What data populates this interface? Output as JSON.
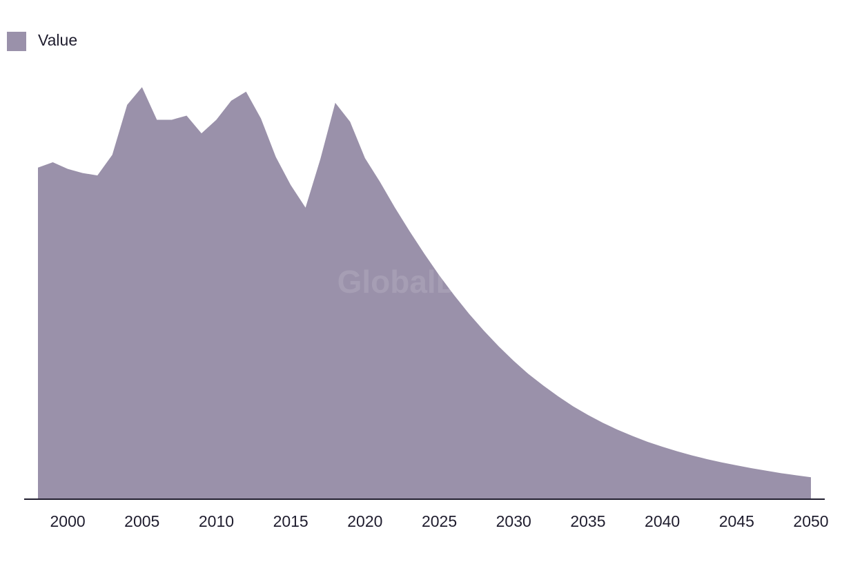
{
  "chart_data": {
    "type": "area",
    "title": "",
    "xlabel": "",
    "ylabel": "",
    "legend": {
      "position": "top-left",
      "entries": [
        "Value"
      ]
    },
    "grid": false,
    "xlim": [
      1998,
      2050
    ],
    "ylim": [
      0,
      100
    ],
    "x_ticks": [
      2000,
      2005,
      2010,
      2015,
      2020,
      2025,
      2030,
      2035,
      2040,
      2045,
      2050
    ],
    "series": [
      {
        "name": "Value",
        "color": "#9a91aa",
        "x": [
          1998,
          1999,
          2000,
          2001,
          2002,
          2003,
          2004,
          2005,
          2006,
          2007,
          2008,
          2009,
          2010,
          2011,
          2012,
          2013,
          2014,
          2015,
          2016,
          2017,
          2018,
          2019,
          2020,
          2021,
          2022,
          2023,
          2024,
          2025,
          2026,
          2027,
          2028,
          2029,
          2030,
          2031,
          2032,
          2033,
          2034,
          2035,
          2036,
          2037,
          2038,
          2039,
          2040,
          2041,
          2042,
          2043,
          2044,
          2045,
          2046,
          2047,
          2048,
          2049,
          2050
        ],
        "values": [
          80.3,
          81.6,
          80.0,
          79.0,
          78.4,
          83.4,
          95.5,
          99.8,
          91.9,
          91.9,
          92.9,
          88.6,
          91.9,
          96.5,
          98.7,
          92.2,
          82.9,
          76.1,
          70.6,
          82.4,
          96.0,
          91.4,
          82.6,
          76.9,
          70.7,
          64.9,
          59.4,
          54.2,
          49.4,
          44.9,
          40.8,
          37.0,
          33.5,
          30.3,
          27.5,
          24.9,
          22.5,
          20.4,
          18.5,
          16.8,
          15.3,
          13.9,
          12.7,
          11.6,
          10.6,
          9.7,
          8.9,
          8.2,
          7.5,
          6.9,
          6.3,
          5.8,
          5.3
        ]
      }
    ]
  },
  "watermark": "GlobalData"
}
